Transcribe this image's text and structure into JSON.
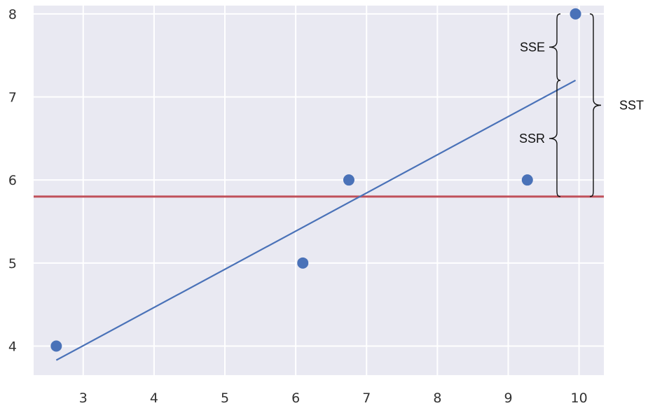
{
  "chart_data": {
    "type": "scatter",
    "title": "",
    "xlabel": "",
    "ylabel": "",
    "xlim": [
      2.3,
      10.35
    ],
    "ylim": [
      3.65,
      8.1
    ],
    "x_ticks": [
      3,
      4,
      5,
      6,
      7,
      8,
      9,
      10
    ],
    "y_ticks": [
      4,
      5,
      6,
      7,
      8
    ],
    "grid": true,
    "background_color": "#e9e9f2",
    "points": {
      "color": "#4a72b8",
      "x": [
        2.62,
        6.1,
        6.75,
        9.27,
        9.95
      ],
      "y": [
        4.0,
        5.0,
        6.0,
        6.0,
        8.0
      ]
    },
    "regression_line": {
      "color": "#4a72b8",
      "x": [
        2.62,
        9.95
      ],
      "y": [
        3.83,
        7.2
      ]
    },
    "mean_line": {
      "color": "#c0505a",
      "y": 5.8
    },
    "annotations": {
      "sse": {
        "label": "SSE",
        "y_from": 7.2,
        "y_to": 8.0
      },
      "ssr": {
        "label": "SSR",
        "y_from": 5.8,
        "y_to": 7.2
      },
      "sst": {
        "label": "SST",
        "y_from": 5.8,
        "y_to": 8.0
      }
    }
  }
}
